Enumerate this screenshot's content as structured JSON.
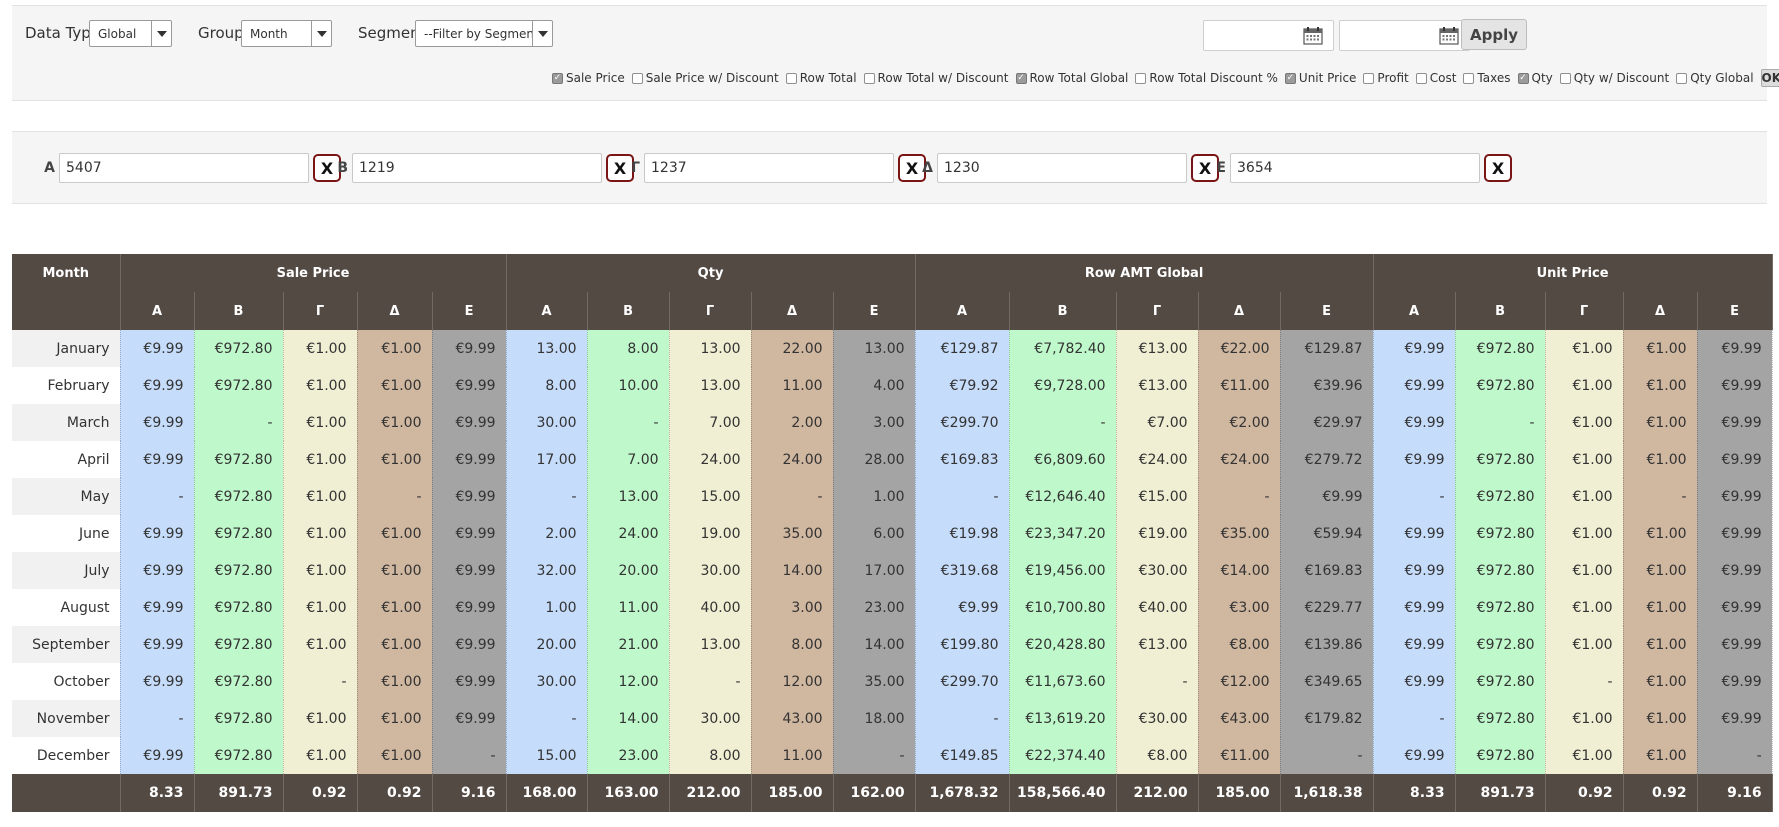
{
  "filters": {
    "data_type": {
      "label": "Data Type:",
      "value": "Global"
    },
    "group": {
      "label": "Group:",
      "value": "Month"
    },
    "segment": {
      "label": "Segment:",
      "value": "--Filter by Segment--"
    },
    "date_from": "",
    "date_to": "",
    "apply_label": "Apply",
    "ok_label": "OK",
    "checkboxes": [
      {
        "label": "Sale Price",
        "checked": true
      },
      {
        "label": "Sale Price w/ Discount",
        "checked": false
      },
      {
        "label": "Row Total",
        "checked": false
      },
      {
        "label": "Row Total w/ Discount",
        "checked": false
      },
      {
        "label": "Row Total Global",
        "checked": true
      },
      {
        "label": "Row Total Discount %",
        "checked": false
      },
      {
        "label": "Unit Price",
        "checked": true
      },
      {
        "label": "Profit",
        "checked": false
      },
      {
        "label": "Cost",
        "checked": false
      },
      {
        "label": "Taxes",
        "checked": false
      },
      {
        "label": "Qty",
        "checked": true
      },
      {
        "label": "Qty w/ Discount",
        "checked": false
      },
      {
        "label": "Qty Global",
        "checked": false
      }
    ]
  },
  "segments": [
    {
      "label": "Α",
      "value": "5407",
      "clear": "X"
    },
    {
      "label": "Β",
      "value": "1219",
      "clear": "X"
    },
    {
      "label": "Γ",
      "value": "1237",
      "clear": "X"
    },
    {
      "label": "Δ",
      "value": "1230",
      "clear": "X"
    },
    {
      "label": "Ε",
      "value": "3654",
      "clear": "X"
    }
  ],
  "table": {
    "month_header": "Month",
    "groups": [
      "Sale Price",
      "Qty",
      "Row AMT Global",
      "Unit Price"
    ],
    "subheaders": [
      "Α",
      "Β",
      "Γ",
      "Δ",
      "Ε"
    ],
    "segment_colors": [
      "#c6dcfb",
      "#bff9cb",
      "#f0efd3",
      "#d0b7a0",
      "#a4a4a4"
    ],
    "rows": [
      {
        "month": "January",
        "values": [
          "€9.99",
          "€972.80",
          "€1.00",
          "€1.00",
          "€9.99",
          "13.00",
          "8.00",
          "13.00",
          "22.00",
          "13.00",
          "€129.87",
          "€7,782.40",
          "€13.00",
          "€22.00",
          "€129.87",
          "€9.99",
          "€972.80",
          "€1.00",
          "€1.00",
          "€9.99"
        ]
      },
      {
        "month": "February",
        "values": [
          "€9.99",
          "€972.80",
          "€1.00",
          "€1.00",
          "€9.99",
          "8.00",
          "10.00",
          "13.00",
          "11.00",
          "4.00",
          "€79.92",
          "€9,728.00",
          "€13.00",
          "€11.00",
          "€39.96",
          "€9.99",
          "€972.80",
          "€1.00",
          "€1.00",
          "€9.99"
        ]
      },
      {
        "month": "March",
        "values": [
          "€9.99",
          "-",
          "€1.00",
          "€1.00",
          "€9.99",
          "30.00",
          "-",
          "7.00",
          "2.00",
          "3.00",
          "€299.70",
          "-",
          "€7.00",
          "€2.00",
          "€29.97",
          "€9.99",
          "-",
          "€1.00",
          "€1.00",
          "€9.99"
        ]
      },
      {
        "month": "April",
        "values": [
          "€9.99",
          "€972.80",
          "€1.00",
          "€1.00",
          "€9.99",
          "17.00",
          "7.00",
          "24.00",
          "24.00",
          "28.00",
          "€169.83",
          "€6,809.60",
          "€24.00",
          "€24.00",
          "€279.72",
          "€9.99",
          "€972.80",
          "€1.00",
          "€1.00",
          "€9.99"
        ]
      },
      {
        "month": "May",
        "values": [
          "-",
          "€972.80",
          "€1.00",
          "-",
          "€9.99",
          "-",
          "13.00",
          "15.00",
          "-",
          "1.00",
          "-",
          "€12,646.40",
          "€15.00",
          "-",
          "€9.99",
          "-",
          "€972.80",
          "€1.00",
          "-",
          "€9.99"
        ]
      },
      {
        "month": "June",
        "values": [
          "€9.99",
          "€972.80",
          "€1.00",
          "€1.00",
          "€9.99",
          "2.00",
          "24.00",
          "19.00",
          "35.00",
          "6.00",
          "€19.98",
          "€23,347.20",
          "€19.00",
          "€35.00",
          "€59.94",
          "€9.99",
          "€972.80",
          "€1.00",
          "€1.00",
          "€9.99"
        ]
      },
      {
        "month": "July",
        "values": [
          "€9.99",
          "€972.80",
          "€1.00",
          "€1.00",
          "€9.99",
          "32.00",
          "20.00",
          "30.00",
          "14.00",
          "17.00",
          "€319.68",
          "€19,456.00",
          "€30.00",
          "€14.00",
          "€169.83",
          "€9.99",
          "€972.80",
          "€1.00",
          "€1.00",
          "€9.99"
        ]
      },
      {
        "month": "August",
        "values": [
          "€9.99",
          "€972.80",
          "€1.00",
          "€1.00",
          "€9.99",
          "1.00",
          "11.00",
          "40.00",
          "3.00",
          "23.00",
          "€9.99",
          "€10,700.80",
          "€40.00",
          "€3.00",
          "€229.77",
          "€9.99",
          "€972.80",
          "€1.00",
          "€1.00",
          "€9.99"
        ]
      },
      {
        "month": "September",
        "values": [
          "€9.99",
          "€972.80",
          "€1.00",
          "€1.00",
          "€9.99",
          "20.00",
          "21.00",
          "13.00",
          "8.00",
          "14.00",
          "€199.80",
          "€20,428.80",
          "€13.00",
          "€8.00",
          "€139.86",
          "€9.99",
          "€972.80",
          "€1.00",
          "€1.00",
          "€9.99"
        ]
      },
      {
        "month": "October",
        "values": [
          "€9.99",
          "€972.80",
          "-",
          "€1.00",
          "€9.99",
          "30.00",
          "12.00",
          "-",
          "12.00",
          "35.00",
          "€299.70",
          "€11,673.60",
          "-",
          "€12.00",
          "€349.65",
          "€9.99",
          "€972.80",
          "-",
          "€1.00",
          "€9.99"
        ]
      },
      {
        "month": "November",
        "values": [
          "-",
          "€972.80",
          "€1.00",
          "€1.00",
          "€9.99",
          "-",
          "14.00",
          "30.00",
          "43.00",
          "18.00",
          "-",
          "€13,619.20",
          "€30.00",
          "€43.00",
          "€179.82",
          "-",
          "€972.80",
          "€1.00",
          "€1.00",
          "€9.99"
        ]
      },
      {
        "month": "December",
        "values": [
          "€9.99",
          "€972.80",
          "€1.00",
          "€1.00",
          "-",
          "15.00",
          "23.00",
          "8.00",
          "11.00",
          "-",
          "€149.85",
          "€22,374.40",
          "€8.00",
          "€11.00",
          "-",
          "€9.99",
          "€972.80",
          "€1.00",
          "€1.00",
          "-"
        ]
      }
    ],
    "totals": [
      "8.33",
      "891.73",
      "0.92",
      "0.92",
      "9.16",
      "168.00",
      "163.00",
      "212.00",
      "185.00",
      "162.00",
      "1,678.32",
      "158,566.40",
      "212.00",
      "185.00",
      "1,618.38",
      "8.33",
      "891.73",
      "0.92",
      "0.92",
      "9.16"
    ]
  }
}
